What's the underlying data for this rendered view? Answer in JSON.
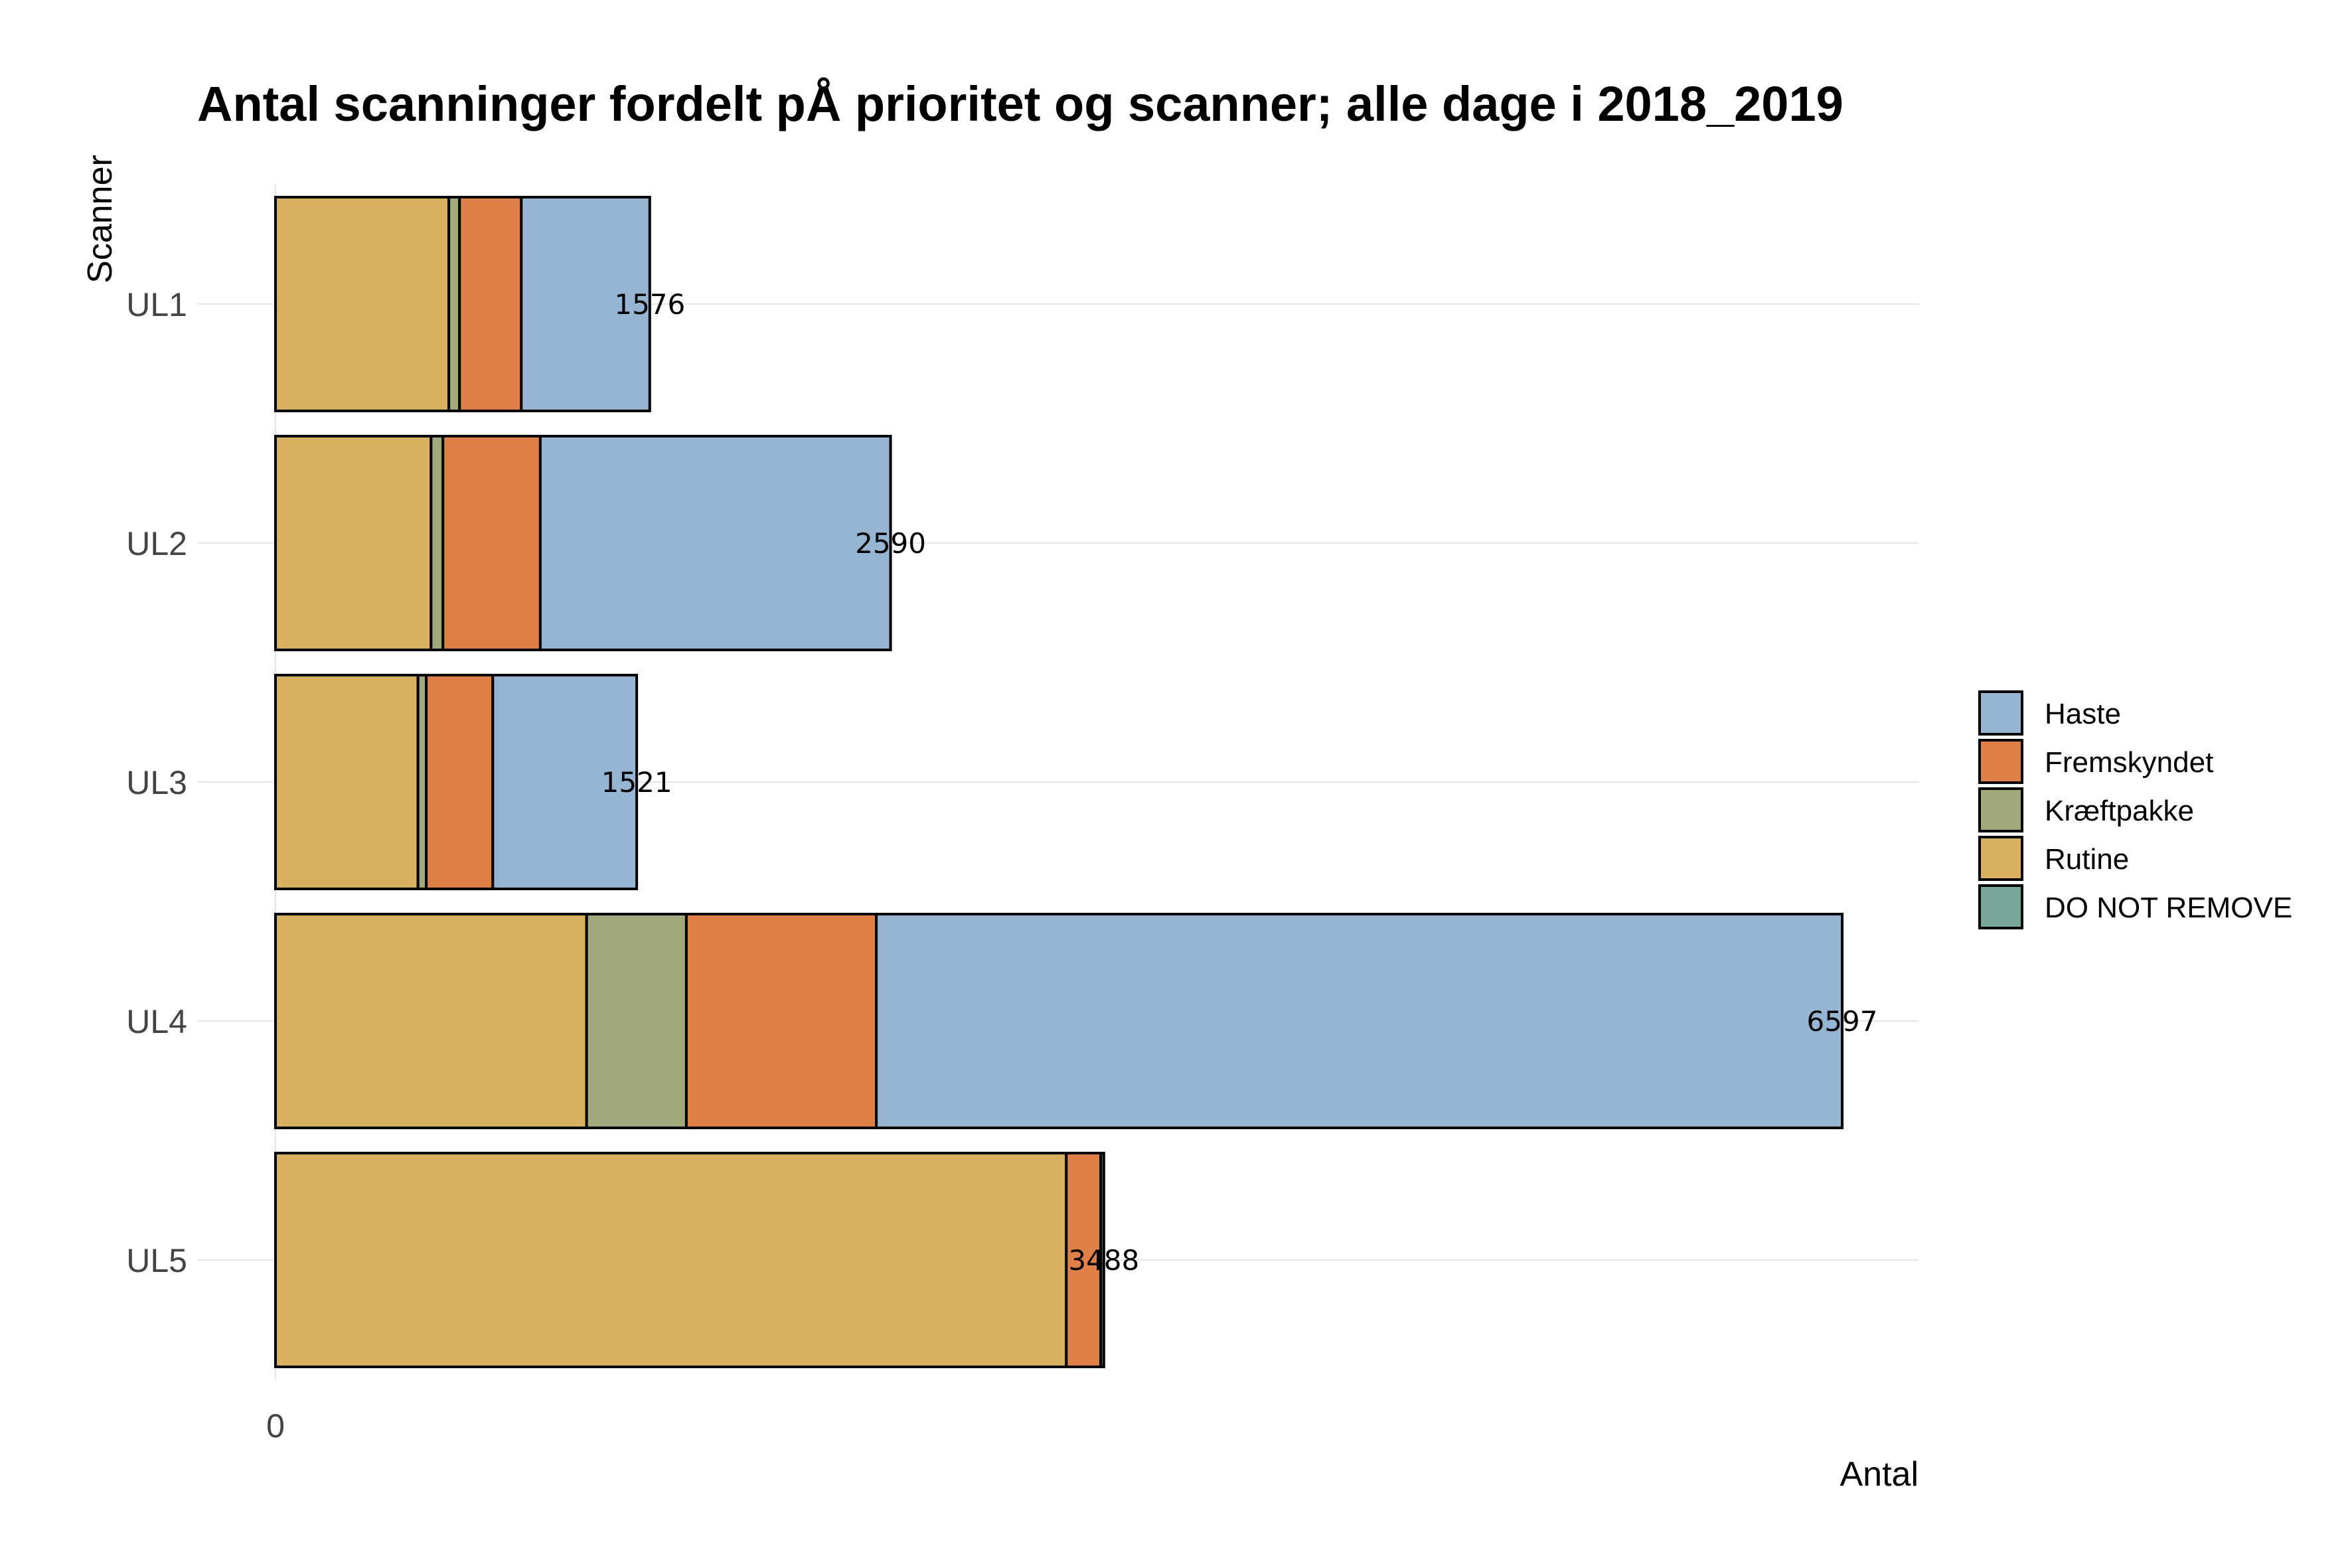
{
  "chart_data": {
    "type": "bar",
    "orientation": "horizontal",
    "stacked": true,
    "title": "Antal scanninger fordelt pÅ prioritet og scanner; alle dage i 2018_2019",
    "xlabel": "Antal",
    "ylabel": "Scanner",
    "x_ticks": [
      "0"
    ],
    "xlim": [
      0,
      7000
    ],
    "grid": true,
    "legend_position": "right",
    "categories": [
      "UL1",
      "UL2",
      "UL3",
      "UL4",
      "UL5"
    ],
    "totals": [
      1576,
      2590,
      1521,
      6597,
      3488
    ],
    "total_labels": [
      "1576",
      "2590",
      "1521",
      "6597",
      "3488"
    ],
    "series": [
      {
        "name": "Rutine",
        "color": "#D8B25E",
        "values": [
          730,
          655,
          600,
          1310,
          3330
        ]
      },
      {
        "name": "Kræftpakke",
        "color": "#A3A97D",
        "values": [
          45,
          50,
          35,
          420,
          0
        ]
      },
      {
        "name": "Fremskyndet",
        "color": "#DE8048",
        "values": [
          260,
          410,
          280,
          800,
          145
        ]
      },
      {
        "name": "Haste",
        "color": "#95B5D2",
        "values": [
          541,
          1475,
          606,
          4067,
          0
        ]
      },
      {
        "name": "DO NOT REMOVE",
        "color": "#77A69B",
        "values": [
          0,
          0,
          0,
          0,
          13
        ]
      }
    ],
    "legend": [
      {
        "name": "Haste",
        "color": "#95B5D2"
      },
      {
        "name": "Fremskyndet",
        "color": "#DE8048"
      },
      {
        "name": "Kræftpakke",
        "color": "#A3A97D"
      },
      {
        "name": "Rutine",
        "color": "#D8B25E"
      },
      {
        "name": "DO NOT REMOVE",
        "color": "#77A69B"
      }
    ]
  }
}
